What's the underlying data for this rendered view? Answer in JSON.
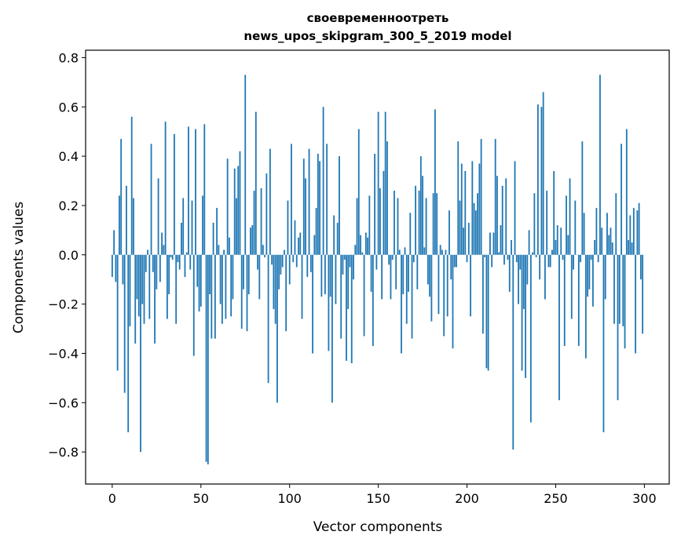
{
  "chart_data": {
    "type": "bar",
    "title": [
      "своевременноотреть",
      "news_upos_skipgram_300_5_2019 model"
    ],
    "xlabel": "Vector components",
    "ylabel": "Components values",
    "xlim": [
      -15,
      314
    ],
    "ylim": [
      -0.93,
      0.83
    ],
    "xticks": [
      0,
      50,
      100,
      150,
      200,
      250,
      300
    ],
    "xtick_labels": [
      "0",
      "50",
      "100",
      "150",
      "200",
      "250",
      "300"
    ],
    "yticks": [
      0.8,
      0.6,
      0.4,
      0.2,
      0.0,
      -0.2,
      -0.4,
      -0.6,
      -0.8
    ],
    "ytick_labels": [
      "0.8",
      "0.6",
      "0.4",
      "0.2",
      "0.0",
      "−0.2",
      "−0.4",
      "−0.6",
      "−0.8"
    ],
    "grid": false,
    "bar_color": "#1f77b4",
    "x_start": 0,
    "values": [
      -0.09,
      0.1,
      -0.11,
      -0.47,
      0.24,
      0.47,
      -0.12,
      -0.56,
      0.28,
      -0.72,
      -0.29,
      0.56,
      0.23,
      -0.36,
      -0.18,
      -0.25,
      -0.8,
      -0.2,
      -0.28,
      -0.07,
      0.02,
      -0.26,
      0.45,
      -0.07,
      -0.36,
      -0.14,
      0.31,
      -0.11,
      0.09,
      0.04,
      0.54,
      -0.26,
      -0.16,
      -0.01,
      -0.02,
      0.49,
      -0.28,
      -0.03,
      -0.06,
      0.13,
      0.23,
      -0.09,
      0.01,
      0.52,
      -0.06,
      0.22,
      -0.41,
      0.51,
      -0.13,
      -0.23,
      -0.21,
      0.24,
      0.53,
      -0.84,
      -0.85,
      -0.16,
      -0.34,
      0.13,
      -0.34,
      0.19,
      0.04,
      -0.2,
      -0.28,
      0.02,
      -0.26,
      0.39,
      0.07,
      -0.25,
      -0.18,
      0.35,
      0.23,
      0.36,
      0.42,
      -0.3,
      -0.14,
      0.73,
      -0.31,
      -0.16,
      0.11,
      0.12,
      0.26,
      0.58,
      -0.06,
      -0.18,
      0.27,
      0.04,
      -0.01,
      0.33,
      -0.52,
      0.43,
      -0.04,
      -0.22,
      -0.28,
      -0.6,
      -0.14,
      -0.08,
      -0.05,
      0.02,
      -0.31,
      0.22,
      -0.12,
      0.45,
      -0.03,
      0.14,
      -0.05,
      0.07,
      0.09,
      -0.26,
      0.39,
      0.31,
      -0.09,
      0.43,
      -0.07,
      -0.4,
      0.08,
      0.19,
      0.41,
      0.38,
      -0.17,
      0.6,
      -0.16,
      0.45,
      -0.39,
      -0.17,
      -0.6,
      0.16,
      -0.2,
      0.13,
      0.4,
      -0.34,
      -0.08,
      -0.02,
      -0.43,
      -0.22,
      -0.05,
      -0.44,
      -0.1,
      0.04,
      0.23,
      0.51,
      0.08,
      0.01,
      -0.33,
      0.09,
      0.07,
      0.24,
      -0.15,
      -0.37,
      0.41,
      -0.06,
      0.58,
      0.27,
      -0.18,
      0.34,
      0.58,
      0.46,
      -0.04,
      -0.18,
      -0.02,
      0.26,
      -0.14,
      0.23,
      0.02,
      -0.4,
      -0.16,
      0.03,
      -0.28,
      -0.15,
      0.17,
      -0.34,
      -0.03,
      0.28,
      -0.14,
      0.26,
      0.4,
      0.32,
      0.03,
      0.23,
      -0.12,
      -0.17,
      -0.27,
      0.25,
      0.59,
      0.25,
      -0.24,
      0.04,
      0.02,
      -0.33,
      0.02,
      -0.25,
      0.18,
      -0.1,
      -0.38,
      -0.05,
      -0.05,
      0.46,
      0.22,
      0.37,
      0.11,
      0.34,
      -0.03,
      0.13,
      -0.25,
      0.38,
      0.21,
      0.18,
      0.25,
      0.37,
      0.47,
      -0.32,
      -0.01,
      -0.46,
      -0.47,
      0.09,
      -0.05,
      0.09,
      0.47,
      0.32,
      0.01,
      0.12,
      0.28,
      -0.04,
      0.31,
      -0.02,
      -0.15,
      0.06,
      -0.79,
      0.38,
      -0.03,
      -0.2,
      -0.06,
      -0.47,
      -0.22,
      -0.5,
      -0.12,
      0.1,
      -0.68,
      0.01,
      0.25,
      -0.01,
      0.61,
      -0.1,
      0.6,
      0.66,
      -0.18,
      0.26,
      -0.05,
      -0.05,
      0.02,
      0.34,
      0.06,
      0.12,
      -0.59,
      0.11,
      -0.02,
      -0.37,
      0.24,
      0.08,
      0.31,
      -0.26,
      -0.06,
      0.22,
      0.0,
      -0.37,
      -0.03,
      0.46,
      0.17,
      -0.42,
      -0.17,
      -0.14,
      -0.02,
      -0.21,
      0.06,
      0.19,
      -0.03,
      0.73,
      0.11,
      -0.72,
      -0.18,
      0.17,
      0.08,
      0.11,
      0.05,
      -0.28,
      0.25,
      -0.59,
      -0.28,
      0.45,
      -0.29,
      -0.38,
      0.51,
      0.06,
      0.16,
      0.05,
      0.19,
      -0.4,
      0.18,
      0.21,
      -0.1,
      -0.32
    ]
  }
}
